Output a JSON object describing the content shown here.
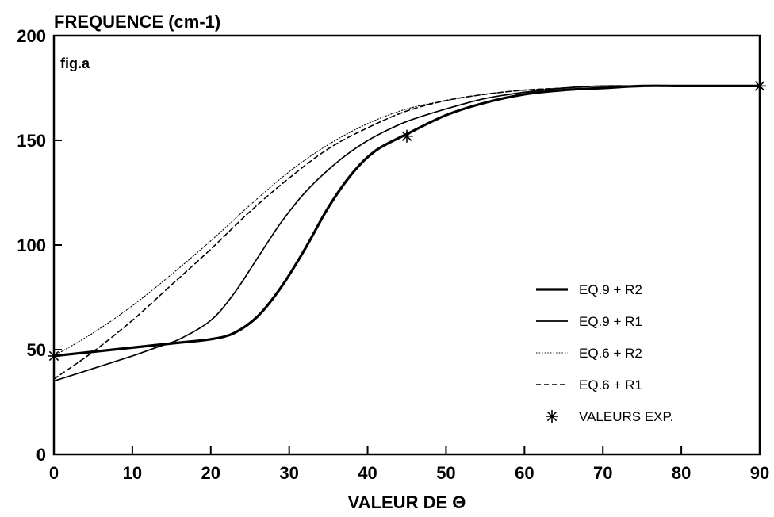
{
  "chart_data": {
    "type": "line",
    "ylabel": "FREQUENCE (cm-1)",
    "xlabel": "VALEUR DE Θ",
    "annotation": "fig.a",
    "xlim": [
      0,
      90
    ],
    "ylim": [
      0,
      200
    ],
    "xticks": [
      0,
      10,
      20,
      30,
      40,
      50,
      60,
      70,
      80,
      90
    ],
    "yticks": [
      0,
      50,
      100,
      150,
      200
    ],
    "grid": false,
    "legend_position": "right",
    "series": [
      {
        "name": "EQ.9 + R2",
        "style": "thick-solid",
        "x": [
          0,
          5,
          10,
          15,
          20,
          23,
          26,
          29,
          32,
          35,
          38,
          41,
          45,
          50,
          55,
          60,
          65,
          70,
          75,
          80,
          85,
          90
        ],
        "y": [
          47,
          49,
          51,
          53,
          55,
          58,
          66,
          80,
          98,
          118,
          134,
          145,
          153,
          162,
          168,
          172,
          174,
          175,
          176,
          176,
          176,
          176
        ]
      },
      {
        "name": "EQ.9 + R1",
        "style": "thin-solid",
        "x": [
          0,
          5,
          10,
          13,
          16,
          20,
          23,
          26,
          29,
          32,
          35,
          38,
          41,
          45,
          50,
          55,
          60,
          65,
          70,
          75,
          80,
          85,
          90
        ],
        "y": [
          35,
          41,
          47,
          51,
          55,
          64,
          77,
          94,
          111,
          125,
          136,
          145,
          152,
          159,
          165,
          170,
          173,
          175,
          176,
          176,
          176,
          176,
          176
        ]
      },
      {
        "name": "EQ.6 + R2",
        "style": "dotted",
        "x": [
          0,
          5,
          10,
          15,
          20,
          25,
          30,
          35,
          40,
          45,
          50,
          55,
          60,
          65,
          70,
          75,
          80,
          85,
          90
        ],
        "y": [
          47,
          58,
          71,
          86,
          102,
          119,
          135,
          148,
          158,
          165,
          169,
          172,
          174,
          175,
          176,
          176,
          176,
          176,
          176
        ]
      },
      {
        "name": "EQ.6 + R1",
        "style": "dashed",
        "x": [
          0,
          5,
          10,
          15,
          20,
          25,
          30,
          35,
          40,
          45,
          50,
          55,
          60,
          65,
          70,
          75,
          80,
          85,
          90
        ],
        "y": [
          36,
          49,
          64,
          81,
          98,
          116,
          132,
          146,
          156,
          164,
          169,
          172,
          174,
          175,
          176,
          176,
          176,
          176,
          176
        ]
      },
      {
        "name": "VALEURS EXP.",
        "style": "asterisk",
        "x": [
          0,
          45,
          90
        ],
        "y": [
          47,
          152,
          176
        ]
      }
    ]
  }
}
